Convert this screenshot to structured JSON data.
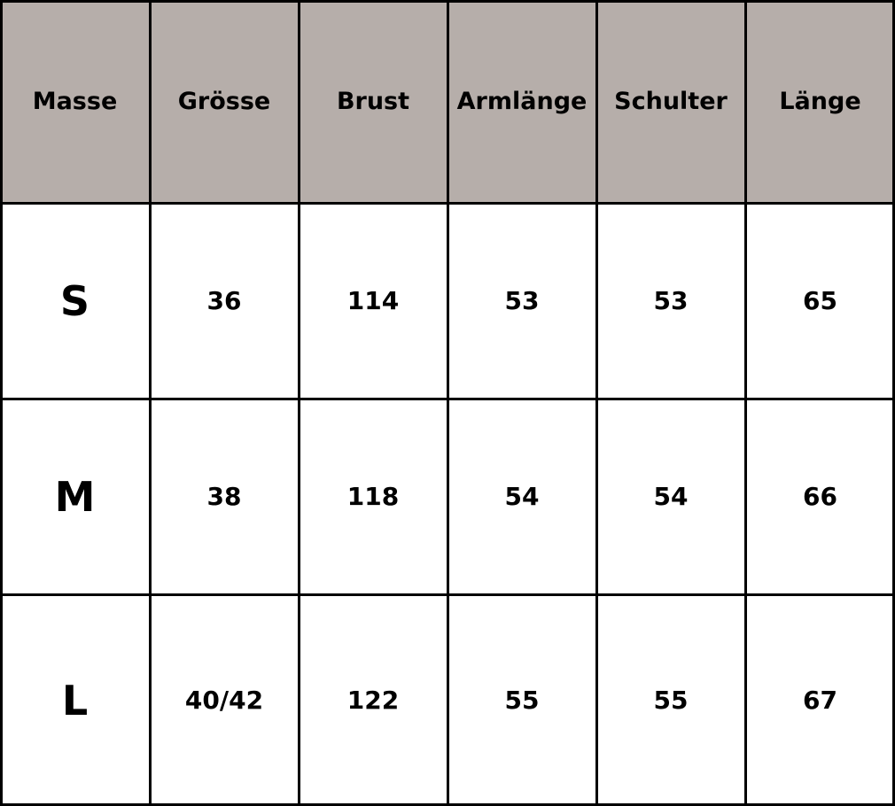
{
  "table": {
    "header_color": "#b6aeaa",
    "headers": [
      "Masse",
      "Grösse",
      "Brust",
      "Armlänge",
      "Schulter",
      "Länge"
    ],
    "rows": [
      [
        "S",
        "36",
        "114",
        "53",
        "53",
        "65"
      ],
      [
        "M",
        "38",
        "118",
        "54",
        "54",
        "66"
      ],
      [
        "L",
        "40/42",
        "122",
        "55",
        "55",
        "67"
      ]
    ]
  }
}
